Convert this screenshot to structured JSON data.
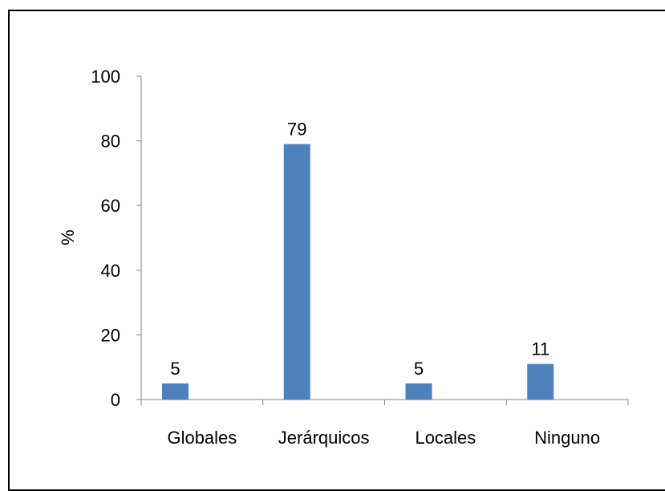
{
  "chart_data": {
    "type": "bar",
    "title": "",
    "xlabel": "",
    "ylabel": "%",
    "ylim": [
      0,
      100
    ],
    "yticks": [
      0,
      20,
      40,
      60,
      80,
      100
    ],
    "categories": [
      "Globales",
      "Jerárquicos",
      "Locales",
      "Ninguno"
    ],
    "values": [
      5,
      79,
      5,
      11
    ],
    "data_labels": [
      "5",
      "79",
      "5",
      "11"
    ],
    "grid": false,
    "legend": "none",
    "bar_color": "#4F81BD"
  }
}
